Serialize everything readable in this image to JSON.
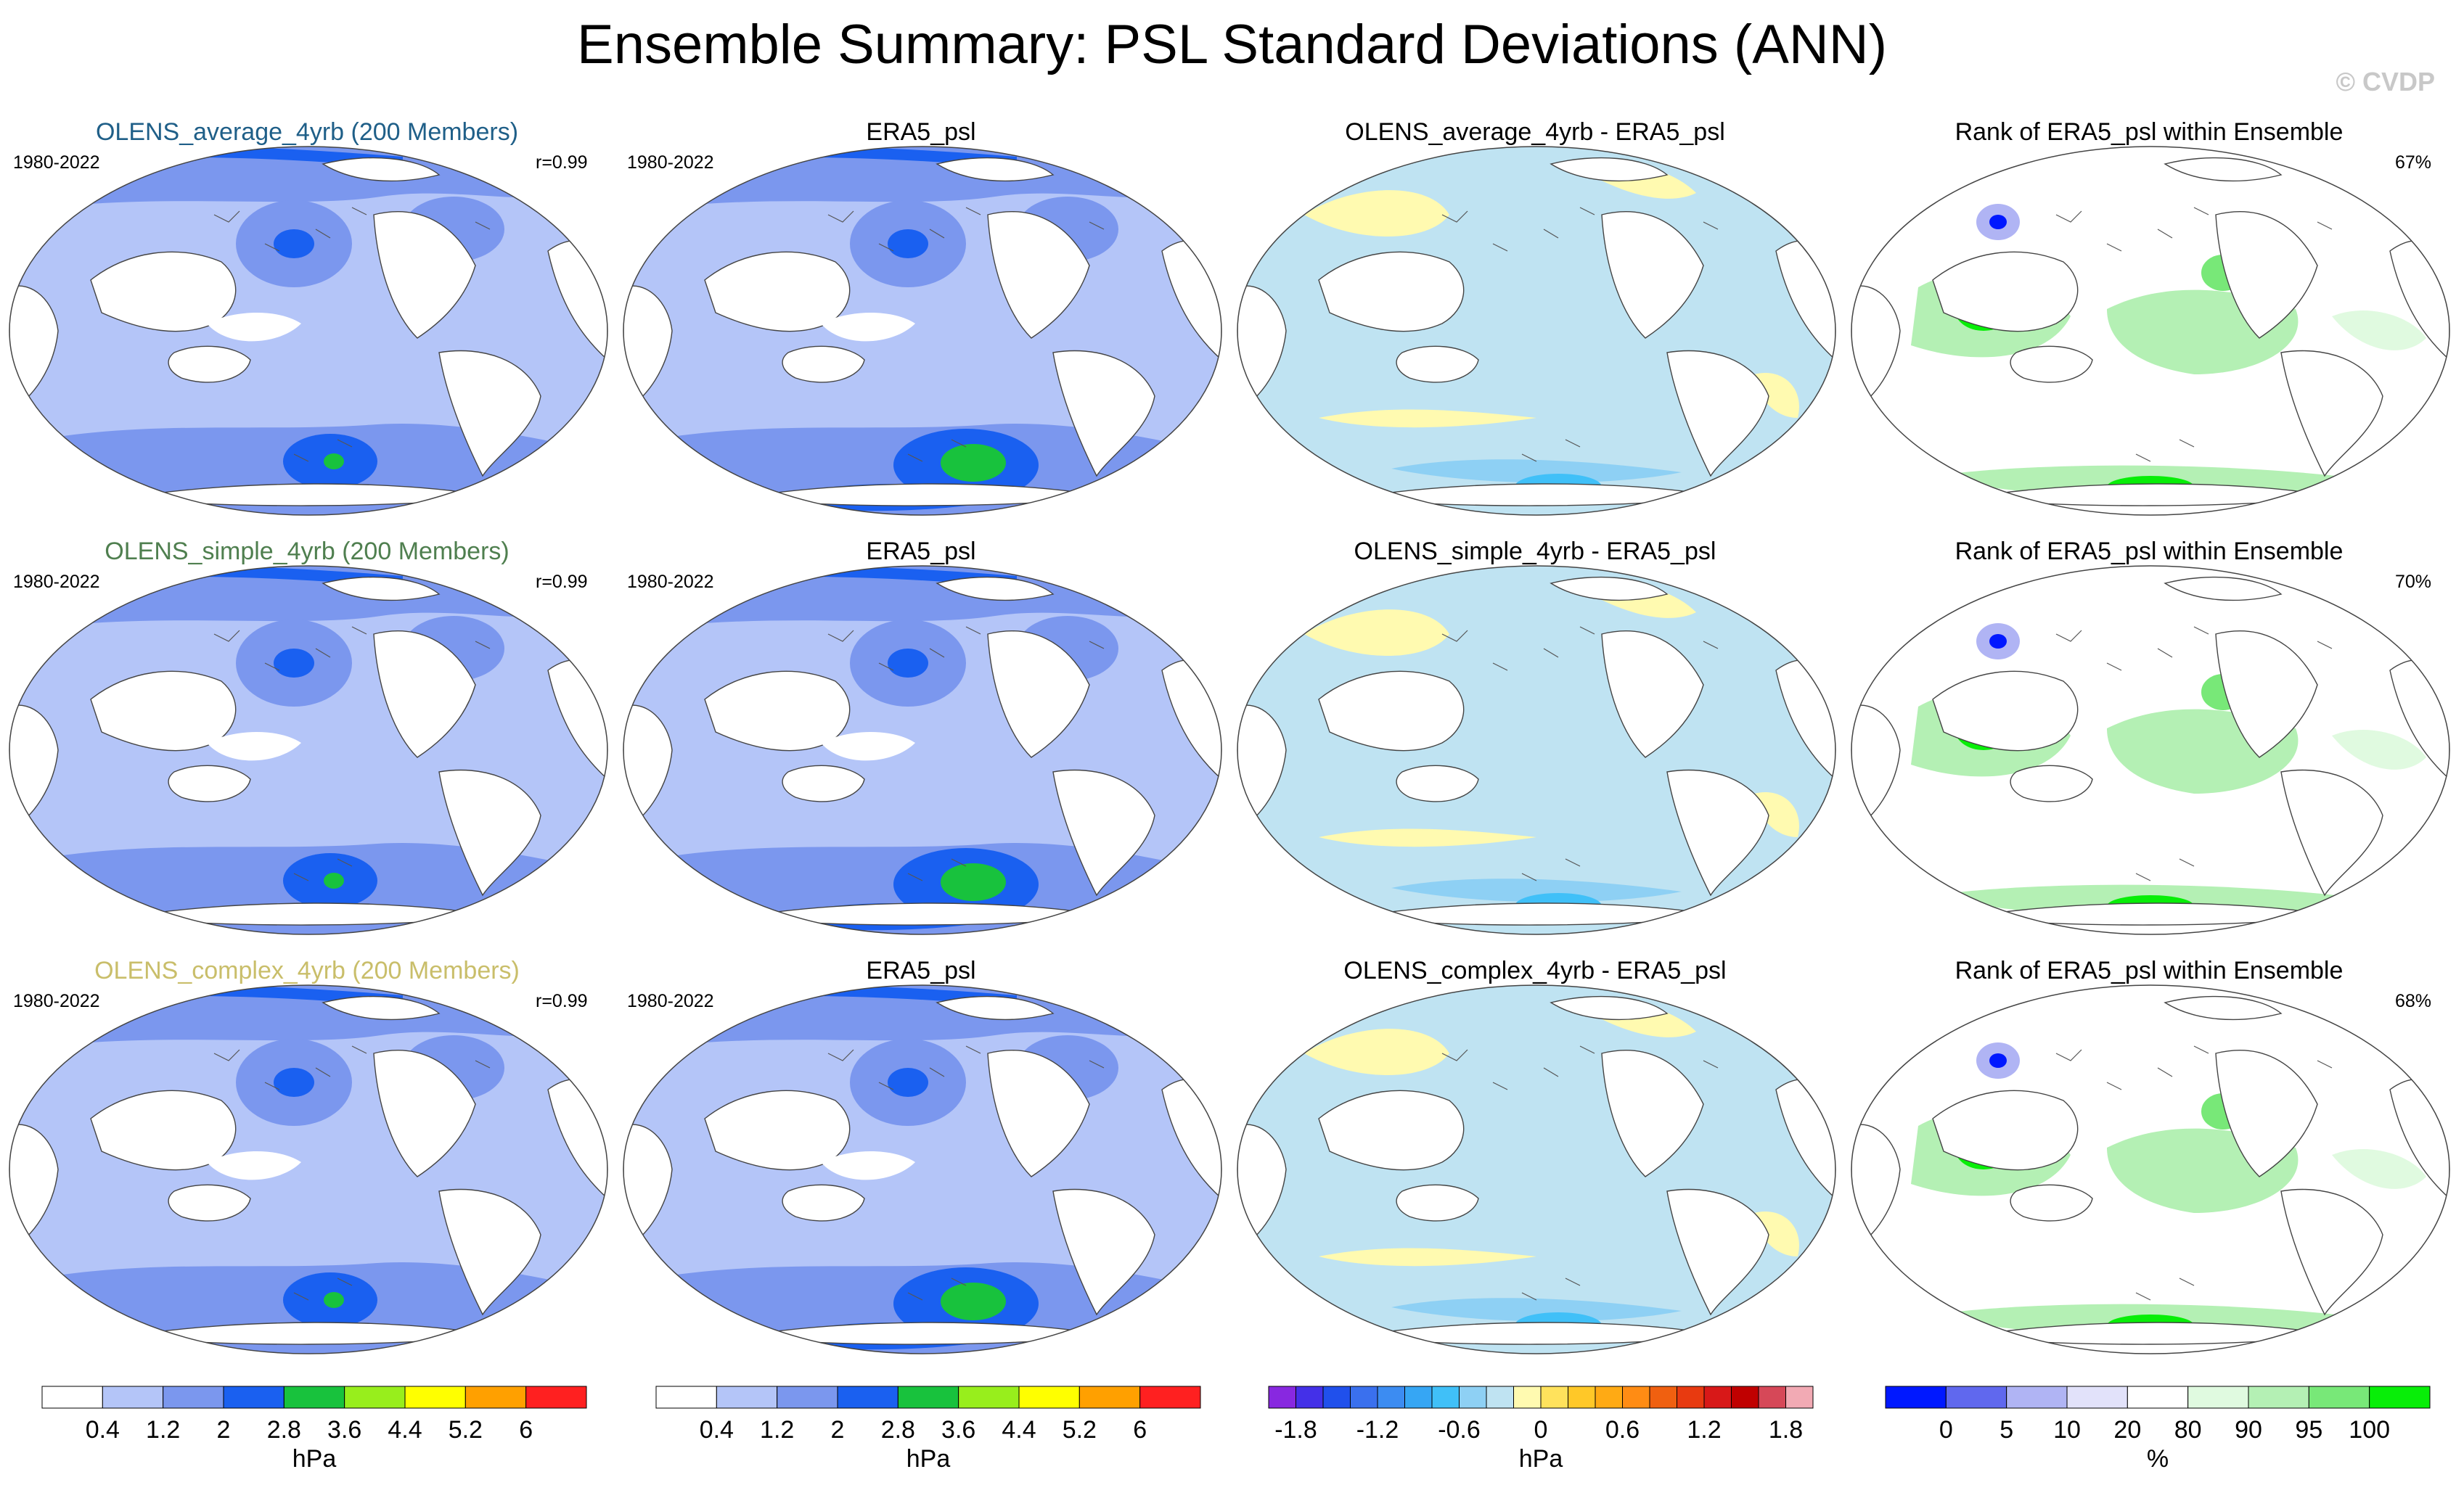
{
  "title": "Ensemble Summary: PSL Standard Deviations (ANN)",
  "copyright": "© CVDP",
  "colors": {
    "dataset_1": "#1f5f88",
    "dataset_2": "#4f7f4f",
    "dataset_3": "#c9be6a",
    "land": "#ffffff",
    "coast": "#444444"
  },
  "rows": [
    {
      "dataset": "OLENS_average_4yrb (200 Members)",
      "period": "1980-2022",
      "corr": "r=0.99",
      "obs_title": "ERA5_psl",
      "obs_period": "1980-2022",
      "diff_title": "OLENS_average_4yrb - ERA5_psl",
      "rank_title": "Rank of ERA5_psl within Ensemble",
      "rank_pct": "67%"
    },
    {
      "dataset": "OLENS_simple_4yrb (200 Members)",
      "period": "1980-2022",
      "corr": "r=0.99",
      "obs_title": "ERA5_psl",
      "obs_period": "1980-2022",
      "diff_title": "OLENS_simple_4yrb - ERA5_psl",
      "rank_title": "Rank of ERA5_psl within Ensemble",
      "rank_pct": "70%"
    },
    {
      "dataset": "OLENS_complex_4yrb (200 Members)",
      "period": "1980-2022",
      "corr": "r=0.99",
      "obs_title": "ERA5_psl",
      "obs_period": "1980-2022",
      "diff_title": "OLENS_complex_4yrb - ERA5_psl",
      "rank_title": "Rank of ERA5_psl within Ensemble",
      "rank_pct": "68%"
    }
  ],
  "chart_data": [
    {
      "type": "heatmap",
      "projection": "robinson-pacific-centered",
      "panels": [
        "ensemble mean std dev",
        "ERA5_psl std dev"
      ],
      "colorbar": {
        "units": "hPa",
        "ticks": [
          "0.4",
          "1.2",
          "2",
          "2.8",
          "3.6",
          "4.4",
          "5.2",
          "6"
        ],
        "colors": [
          "#ffffff",
          "#b4c5f8",
          "#7b97ee",
          "#1a60f0",
          "#18c23d",
          "#98ee1c",
          "#ffff00",
          "#ffa000",
          "#ff2020"
        ]
      }
    },
    {
      "type": "heatmap",
      "panels": [
        "ensemble mean minus ERA5_psl"
      ],
      "colorbar": {
        "units": "hPa",
        "ticks": [
          "-1.8",
          "-1.2",
          "-0.6",
          "0",
          "0.6",
          "1.2",
          "1.8"
        ],
        "colors": [
          "#8828e0",
          "#4430e8",
          "#2050ec",
          "#3a70ee",
          "#3c8cf2",
          "#36a6f4",
          "#40c0f8",
          "#8ed0f4",
          "#bfe3f2",
          "#fffab0",
          "#ffe25c",
          "#ffc828",
          "#ffaa14",
          "#ff8c14",
          "#f06010",
          "#e83a10",
          "#d81818",
          "#c00000",
          "#d64858",
          "#f2aab4"
        ]
      }
    },
    {
      "type": "heatmap",
      "panels": [
        "percent rank of ERA5_psl within ensemble"
      ],
      "colorbar": {
        "units": "%",
        "ticks": [
          "0",
          "5",
          "10",
          "20",
          "80",
          "90",
          "95",
          "100"
        ],
        "colors": [
          "#0018ff",
          "#6068ee",
          "#b0b4f4",
          "#e2e2fa",
          "#ffffff",
          "#e0fae0",
          "#b4f0b4",
          "#78e878",
          "#08ee08"
        ]
      }
    }
  ]
}
